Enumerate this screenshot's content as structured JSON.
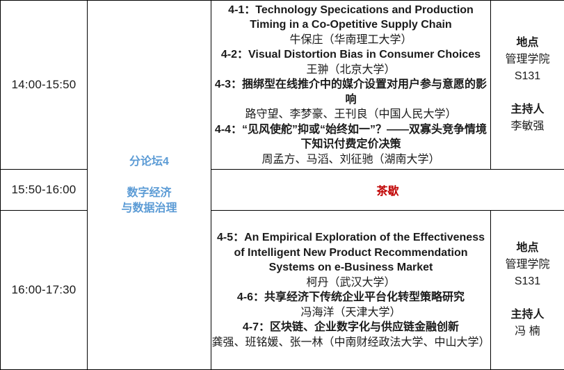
{
  "colors": {
    "accent_blue": "#5B9BD5",
    "accent_red": "#C00000",
    "border": "#000000",
    "text": "#1A1A1A",
    "background": "#FFFFFF"
  },
  "schedule": {
    "forum": {
      "title": "分论坛4",
      "topic_line1": "数字经济",
      "topic_line2": "与数据治理"
    },
    "slots": [
      {
        "time": "14:00-15:50",
        "sessions": [
          {
            "title": "4-1：Technology Specications and Production Timing in a Co-Opetitive Supply Chain",
            "authors": "牛保庄（华南理工大学）"
          },
          {
            "title": "4-2：Visual Distortion Bias in Consumer Choices",
            "authors": "王翀（北京大学）"
          },
          {
            "title": "4-3：捆绑型在线推介中的媒介设置对用户参与意愿的影响",
            "authors": "路守望、李梦豪、王刊良（中国人民大学）"
          },
          {
            "title": "4-4：“见风使舵”抑或“始终如一”？——双寡头竞争情境下知识付费定价决策",
            "authors": "周孟方、马滔、刘征驰（湖南大学）"
          }
        ],
        "info": {
          "venue_label": "地点",
          "venue_line1": "管理学院",
          "venue_line2": "S131",
          "chair_label": "主持人",
          "chair": "李敏强"
        }
      },
      {
        "time": "15:50-16:00",
        "break_label": "茶歇"
      },
      {
        "time": "16:00-17:30",
        "sessions": [
          {
            "title": "4-5：An Empirical Exploration of the Effectiveness of Intelligent New Product Recommendation Systems on e-Business Market",
            "authors": "柯丹（武汉大学）"
          },
          {
            "title": "4-6：共享经济下传统企业平台化转型策略研究",
            "authors": "冯海洋（天津大学）"
          },
          {
            "title": "4-7：区块链、企业数字化与供应链金融创新",
            "authors": "龚强、班铭媛、张一林（中南财经政法大学、中山大学）"
          }
        ],
        "info": {
          "venue_label": "地点",
          "venue_line1": "管理学院",
          "venue_line2": "S131",
          "chair_label": "主持人",
          "chair": "冯 楠"
        }
      }
    ]
  }
}
